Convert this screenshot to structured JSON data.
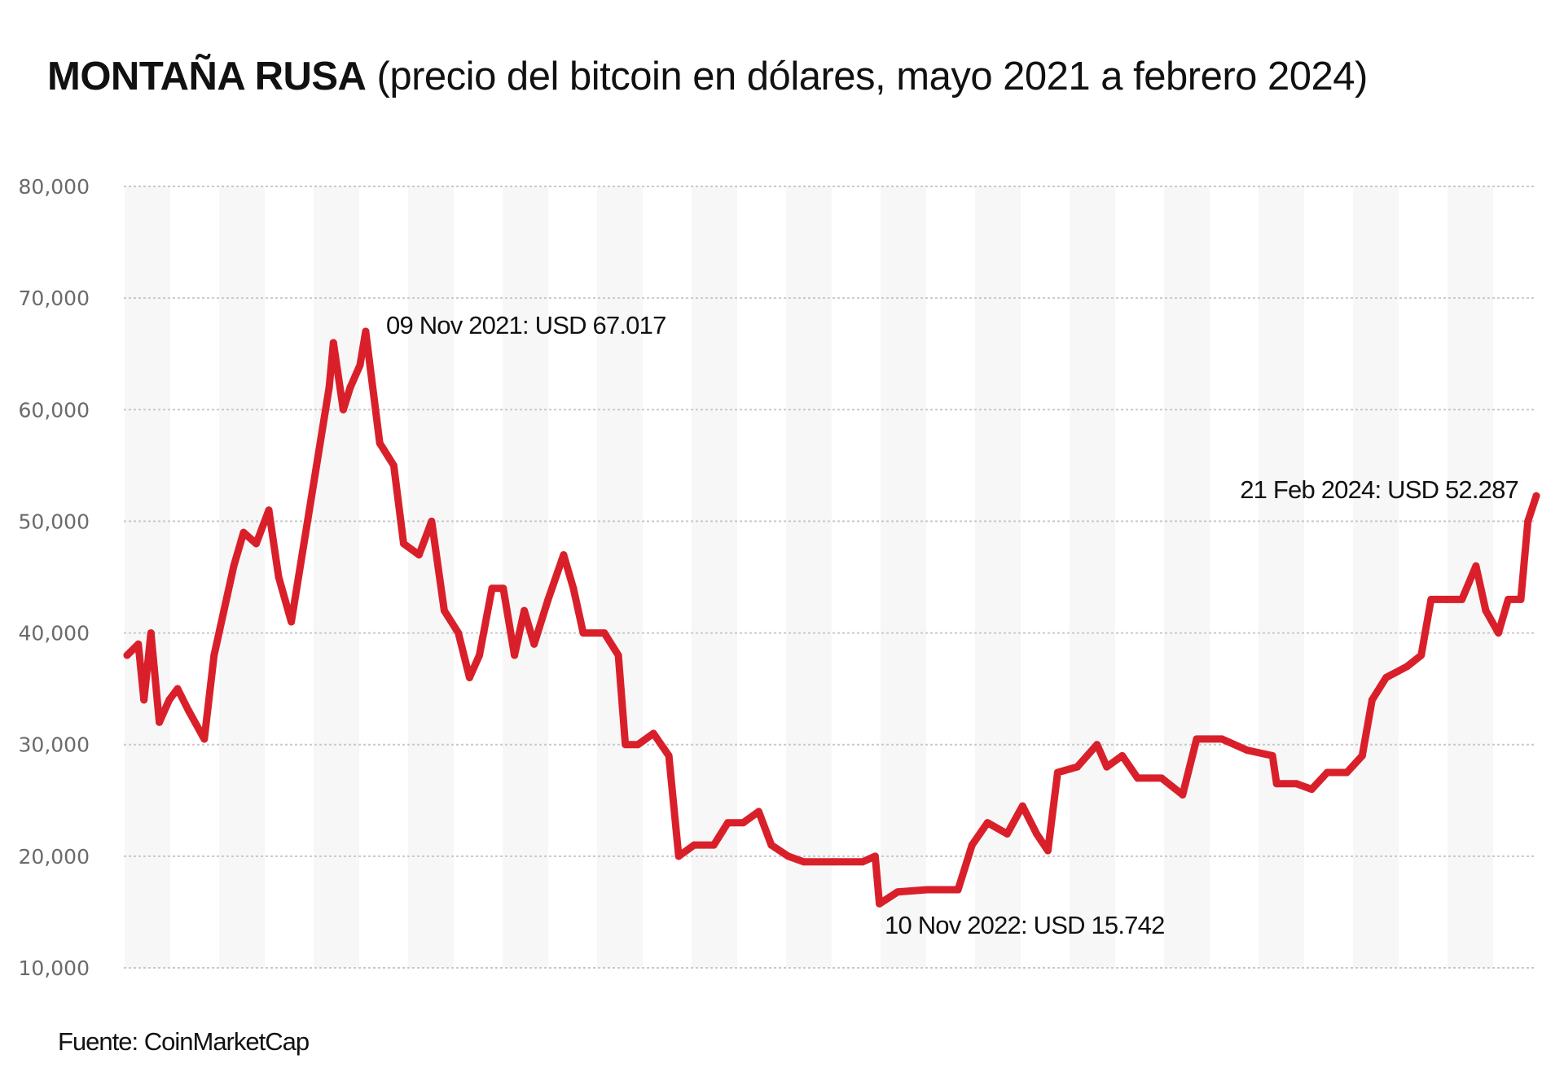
{
  "chart_data": {
    "type": "line",
    "title": "MONTAÑA RUSA",
    "subtitle": "(precio del bitcoin en dólares, mayo 2021 a febrero 2024)",
    "xlabel": "",
    "ylabel": "",
    "xlim": [
      "2021-05-23",
      "2024-02-21"
    ],
    "ylim": [
      10000,
      80000
    ],
    "y_ticks": [
      "10,000",
      "20,000",
      "30,000",
      "40,000",
      "50,000",
      "60,000",
      "70,000",
      "80,000"
    ],
    "y_tick_values": [
      10000,
      20000,
      30000,
      40000,
      50000,
      60000,
      70000,
      80000
    ],
    "grid": "horizontal dotted",
    "line_color": "#d9202a",
    "series": [
      {
        "x": [
          "2021-05-23",
          "2021-05-31",
          "2021-06-04",
          "2021-06-09",
          "2021-06-15",
          "2021-06-22",
          "2021-06-28",
          "2021-07-06",
          "2021-07-17",
          "2021-07-24",
          "2021-07-31",
          "2021-08-07",
          "2021-08-14",
          "2021-08-23",
          "2021-09-01",
          "2021-09-08",
          "2021-09-17",
          "2021-09-26",
          "2021-10-05",
          "2021-10-14",
          "2021-10-17",
          "2021-10-24",
          "2021-10-29",
          "2021-11-05",
          "2021-11-09",
          "2021-11-19",
          "2021-11-29",
          "2021-12-06",
          "2021-12-17",
          "2021-12-26",
          "2022-01-04",
          "2022-01-14",
          "2022-01-22",
          "2022-01-29",
          "2022-02-07",
          "2022-02-15",
          "2022-02-23",
          "2022-03-02",
          "2022-03-09",
          "2022-03-19",
          "2022-03-30",
          "2022-04-06",
          "2022-04-13",
          "2022-04-28",
          "2022-05-08",
          "2022-05-13",
          "2022-05-22",
          "2022-06-02",
          "2022-06-13",
          "2022-06-20",
          "2022-07-01",
          "2022-07-15",
          "2022-07-25",
          "2022-08-05",
          "2022-08-16",
          "2022-08-25",
          "2022-09-06",
          "2022-09-17",
          "2022-10-08",
          "2022-10-29",
          "2022-11-07",
          "2022-11-10",
          "2022-11-23",
          "2022-12-14",
          "2023-01-05",
          "2023-01-15",
          "2023-01-26",
          "2023-02-09",
          "2023-02-20",
          "2023-03-02",
          "2023-03-10",
          "2023-03-17",
          "2023-03-31",
          "2023-04-14",
          "2023-04-21",
          "2023-05-02",
          "2023-05-13",
          "2023-05-30",
          "2023-06-14",
          "2023-06-24",
          "2023-07-12",
          "2023-07-30",
          "2023-08-17",
          "2023-08-20",
          "2023-09-03",
          "2023-09-14",
          "2023-09-25",
          "2023-10-09",
          "2023-10-20",
          "2023-10-27",
          "2023-11-06",
          "2023-11-21",
          "2023-12-01",
          "2023-12-08",
          "2023-12-19",
          "2023-12-30",
          "2024-01-09",
          "2024-01-16",
          "2024-01-25",
          "2024-02-01",
          "2024-02-10",
          "2024-02-15",
          "2024-02-21"
        ],
        "y": [
          38000,
          39000,
          34000,
          40000,
          32000,
          34000,
          35000,
          33000,
          30500,
          38000,
          42000,
          46000,
          49000,
          48000,
          51000,
          45000,
          41000,
          48000,
          55000,
          62000,
          66000,
          60000,
          62000,
          64000,
          67017,
          57000,
          55000,
          48000,
          47000,
          50000,
          42000,
          40000,
          36000,
          38000,
          44000,
          44000,
          38000,
          42000,
          39000,
          43000,
          47000,
          44000,
          40000,
          40000,
          38000,
          30000,
          30000,
          31000,
          29000,
          20000,
          21000,
          21000,
          23000,
          23000,
          24000,
          21000,
          20000,
          19500,
          19500,
          19500,
          20000,
          15742,
          16800,
          17000,
          17000,
          21000,
          23000,
          22000,
          24500,
          22000,
          20500,
          27500,
          28000,
          30000,
          28000,
          29000,
          27000,
          27000,
          25500,
          30500,
          30500,
          29500,
          29000,
          26500,
          26500,
          26000,
          27500,
          27500,
          29000,
          34000,
          36000,
          37000,
          38000,
          43000,
          43000,
          43000,
          46000,
          42000,
          40000,
          43000,
          43000,
          50000,
          52287
        ]
      }
    ],
    "annotations": [
      {
        "text": "09 Nov 2021: USD 67.017",
        "x": "2021-11-09",
        "y": 67017
      },
      {
        "text": "10 Nov 2022: USD 15.742",
        "x": "2022-11-10",
        "y": 15742
      },
      {
        "text": "21 Feb 2024: USD 52.287",
        "x": "2024-02-21",
        "y": 52287
      }
    ],
    "source": "Fuente: CoinMarketCap"
  }
}
